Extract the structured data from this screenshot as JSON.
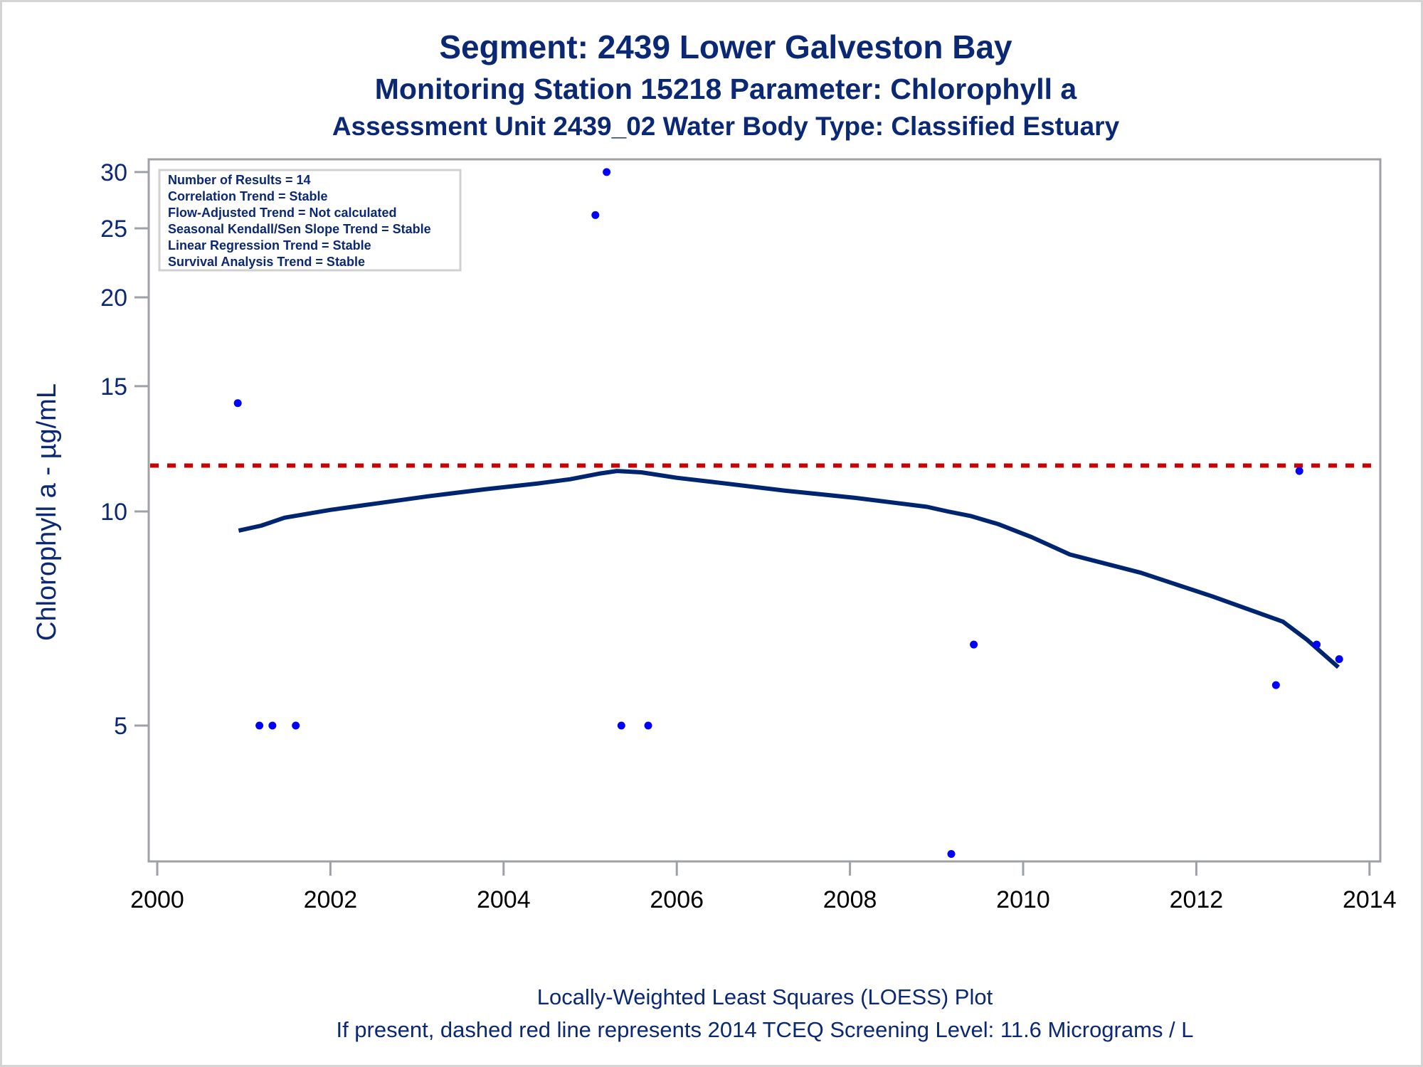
{
  "chart_data": {
    "type": "scatter",
    "title": "Segment: 2439  Lower Galveston Bay",
    "subtitle_lines": [
      "Monitoring Station 15218 Parameter: Chlorophyll a",
      "Assessment Unit 2439_02   Water Body Type: Classified Estuary"
    ],
    "xlabel": "",
    "ylabel": "Chlorophyll a -  µg/mL",
    "y_scale": "log",
    "xlim": [
      1999.9,
      2014.2
    ],
    "ylim": [
      3.2,
      31.3
    ],
    "x_ticks": [
      2000,
      2002,
      2004,
      2006,
      2008,
      2010,
      2012,
      2014
    ],
    "x_tick_labels": [
      "2000",
      "2002",
      "2004",
      "2006",
      "2008",
      "2010",
      "2012",
      "2014"
    ],
    "y_ticks": [
      5,
      10,
      15,
      20,
      25,
      30
    ],
    "y_tick_labels": [
      "5",
      "10",
      "15",
      "20",
      "25",
      "30"
    ],
    "grid": false,
    "series": [
      {
        "name": "Observed Results",
        "kind": "points",
        "color": "#0000ff",
        "points": [
          {
            "x": 2000.93,
            "y": 14.2
          },
          {
            "x": 2001.18,
            "y": 5.0
          },
          {
            "x": 2001.33,
            "y": 5.0
          },
          {
            "x": 2001.6,
            "y": 5.0
          },
          {
            "x": 2005.06,
            "y": 26.1
          },
          {
            "x": 2005.19,
            "y": 30.0
          },
          {
            "x": 2005.36,
            "y": 5.0
          },
          {
            "x": 2005.67,
            "y": 5.0
          },
          {
            "x": 2009.17,
            "y": 3.3
          },
          {
            "x": 2009.43,
            "y": 6.5
          },
          {
            "x": 2012.92,
            "y": 5.7
          },
          {
            "x": 2013.19,
            "y": 11.4
          },
          {
            "x": 2013.39,
            "y": 6.5
          },
          {
            "x": 2013.65,
            "y": 6.2
          }
        ]
      },
      {
        "name": "LOESS Fit",
        "kind": "line",
        "color": "#002570",
        "points": [
          {
            "x": 2000.94,
            "y": 9.4
          },
          {
            "x": 2001.2,
            "y": 9.55
          },
          {
            "x": 2001.47,
            "y": 9.8
          },
          {
            "x": 2002.0,
            "y": 10.05
          },
          {
            "x": 2002.5,
            "y": 10.25
          },
          {
            "x": 2003.12,
            "y": 10.5
          },
          {
            "x": 2003.8,
            "y": 10.75
          },
          {
            "x": 2004.4,
            "y": 10.95
          },
          {
            "x": 2004.77,
            "y": 11.1
          },
          {
            "x": 2005.1,
            "y": 11.3
          },
          {
            "x": 2005.31,
            "y": 11.4
          },
          {
            "x": 2005.59,
            "y": 11.35
          },
          {
            "x": 2006.0,
            "y": 11.15
          },
          {
            "x": 2006.42,
            "y": 11.0
          },
          {
            "x": 2007.24,
            "y": 10.7
          },
          {
            "x": 2008.06,
            "y": 10.45
          },
          {
            "x": 2008.89,
            "y": 10.15
          },
          {
            "x": 2009.13,
            "y": 10.0
          },
          {
            "x": 2009.4,
            "y": 9.85
          },
          {
            "x": 2009.71,
            "y": 9.6
          },
          {
            "x": 2010.1,
            "y": 9.2
          },
          {
            "x": 2010.54,
            "y": 8.7
          },
          {
            "x": 2011.36,
            "y": 8.2
          },
          {
            "x": 2012.18,
            "y": 7.6
          },
          {
            "x": 2013.0,
            "y": 7.0
          },
          {
            "x": 2013.28,
            "y": 6.6
          },
          {
            "x": 2013.64,
            "y": 6.04
          }
        ]
      }
    ],
    "reference_line": {
      "name": "2014 TCEQ Screening Level",
      "y": 11.6,
      "style": "dashed",
      "color": "#cc0000"
    },
    "annotations": {
      "stats_box_position": "top-left",
      "stats_lines": [
        "Number of Results = 14",
        "Correlation Trend = Stable",
        "Flow-Adjusted Trend = Not calculated",
        "Seasonal Kendall/Sen Slope Trend = Stable",
        "Linear Regression Trend = Stable",
        "Survival Analysis Trend = Stable"
      ]
    },
    "footer_lines": [
      "Locally-Weighted Least Squares (LOESS) Plot",
      "If present, dashed red line represents 2014 TCEQ Screening Level: 11.6 Micrograms / L"
    ]
  },
  "colors": {
    "text": "#0b2875",
    "axis": "#9ea1a6",
    "points": "#0000ff",
    "loess": "#002570",
    "reference": "#cc0000",
    "stats_border": "#d0d0d0"
  }
}
